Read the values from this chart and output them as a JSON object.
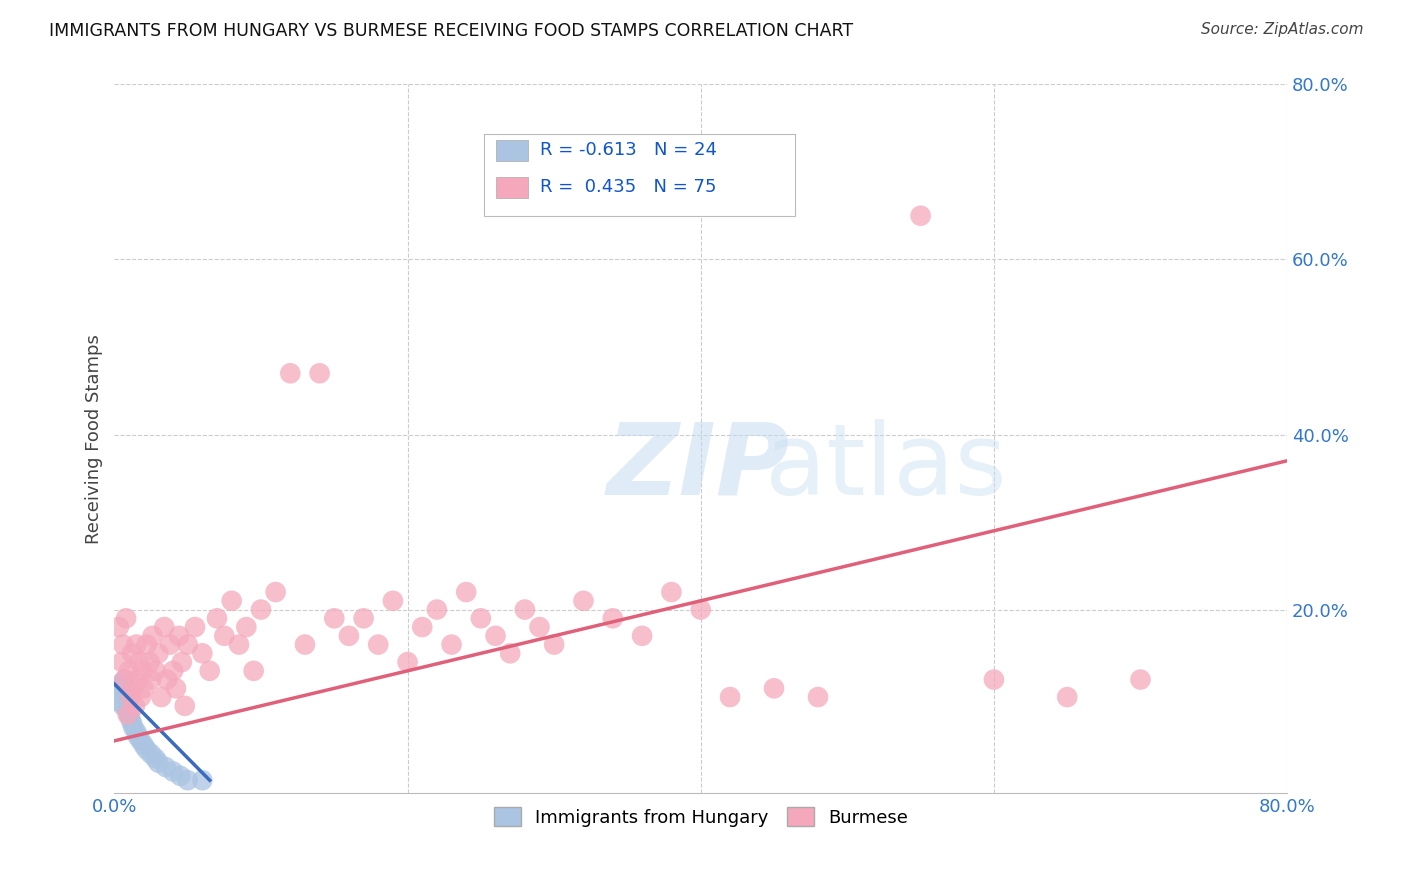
{
  "title": "IMMIGRANTS FROM HUNGARY VS BURMESE RECEIVING FOOD STAMPS CORRELATION CHART",
  "source": "Source: ZipAtlas.com",
  "ylabel": "Receiving Food Stamps",
  "xlim": [
    0.0,
    0.8
  ],
  "ylim": [
    -0.01,
    0.8
  ],
  "legend_labels": [
    "Immigrants from Hungary",
    "Burmese"
  ],
  "legend_r": [
    -0.613,
    0.435
  ],
  "legend_n": [
    24,
    75
  ],
  "hungary_color": "#aac4e2",
  "burmese_color": "#f5a8bc",
  "hungary_line_color": "#3a6bbf",
  "burmese_line_color": "#e0607a",
  "background_color": "#ffffff",
  "grid_color": "#cccccc",
  "hungary_points": [
    [
      0.003,
      0.095
    ],
    [
      0.004,
      0.115
    ],
    [
      0.005,
      0.105
    ],
    [
      0.006,
      0.09
    ],
    [
      0.007,
      0.12
    ],
    [
      0.008,
      0.1
    ],
    [
      0.009,
      0.085
    ],
    [
      0.01,
      0.08
    ],
    [
      0.011,
      0.075
    ],
    [
      0.012,
      0.07
    ],
    [
      0.013,
      0.065
    ],
    [
      0.015,
      0.06
    ],
    [
      0.016,
      0.055
    ],
    [
      0.018,
      0.05
    ],
    [
      0.02,
      0.045
    ],
    [
      0.022,
      0.04
    ],
    [
      0.025,
      0.035
    ],
    [
      0.028,
      0.03
    ],
    [
      0.03,
      0.025
    ],
    [
      0.035,
      0.02
    ],
    [
      0.04,
      0.015
    ],
    [
      0.045,
      0.01
    ],
    [
      0.05,
      0.005
    ],
    [
      0.06,
      0.005
    ]
  ],
  "burmese_points": [
    [
      0.003,
      0.18
    ],
    [
      0.005,
      0.14
    ],
    [
      0.006,
      0.16
    ],
    [
      0.007,
      0.12
    ],
    [
      0.008,
      0.19
    ],
    [
      0.009,
      0.08
    ],
    [
      0.01,
      0.13
    ],
    [
      0.011,
      0.1
    ],
    [
      0.012,
      0.15
    ],
    [
      0.013,
      0.11
    ],
    [
      0.014,
      0.09
    ],
    [
      0.015,
      0.16
    ],
    [
      0.016,
      0.12
    ],
    [
      0.017,
      0.14
    ],
    [
      0.018,
      0.1
    ],
    [
      0.019,
      0.13
    ],
    [
      0.02,
      0.11
    ],
    [
      0.022,
      0.16
    ],
    [
      0.024,
      0.14
    ],
    [
      0.025,
      0.12
    ],
    [
      0.026,
      0.17
    ],
    [
      0.028,
      0.13
    ],
    [
      0.03,
      0.15
    ],
    [
      0.032,
      0.1
    ],
    [
      0.034,
      0.18
    ],
    [
      0.036,
      0.12
    ],
    [
      0.038,
      0.16
    ],
    [
      0.04,
      0.13
    ],
    [
      0.042,
      0.11
    ],
    [
      0.044,
      0.17
    ],
    [
      0.046,
      0.14
    ],
    [
      0.048,
      0.09
    ],
    [
      0.05,
      0.16
    ],
    [
      0.055,
      0.18
    ],
    [
      0.06,
      0.15
    ],
    [
      0.065,
      0.13
    ],
    [
      0.07,
      0.19
    ],
    [
      0.075,
      0.17
    ],
    [
      0.08,
      0.21
    ],
    [
      0.085,
      0.16
    ],
    [
      0.09,
      0.18
    ],
    [
      0.095,
      0.13
    ],
    [
      0.1,
      0.2
    ],
    [
      0.11,
      0.22
    ],
    [
      0.12,
      0.47
    ],
    [
      0.13,
      0.16
    ],
    [
      0.14,
      0.47
    ],
    [
      0.15,
      0.19
    ],
    [
      0.16,
      0.17
    ],
    [
      0.17,
      0.19
    ],
    [
      0.18,
      0.16
    ],
    [
      0.19,
      0.21
    ],
    [
      0.2,
      0.14
    ],
    [
      0.21,
      0.18
    ],
    [
      0.22,
      0.2
    ],
    [
      0.23,
      0.16
    ],
    [
      0.24,
      0.22
    ],
    [
      0.25,
      0.19
    ],
    [
      0.26,
      0.17
    ],
    [
      0.27,
      0.15
    ],
    [
      0.28,
      0.2
    ],
    [
      0.29,
      0.18
    ],
    [
      0.3,
      0.16
    ],
    [
      0.32,
      0.21
    ],
    [
      0.34,
      0.19
    ],
    [
      0.36,
      0.17
    ],
    [
      0.38,
      0.22
    ],
    [
      0.4,
      0.2
    ],
    [
      0.42,
      0.1
    ],
    [
      0.45,
      0.11
    ],
    [
      0.48,
      0.1
    ],
    [
      0.55,
      0.65
    ],
    [
      0.6,
      0.12
    ],
    [
      0.65,
      0.1
    ],
    [
      0.7,
      0.12
    ]
  ],
  "hungary_line": [
    [
      0.0,
      0.115
    ],
    [
      0.065,
      0.005
    ]
  ],
  "burmese_line": [
    [
      0.0,
      0.05
    ],
    [
      0.8,
      0.37
    ]
  ]
}
